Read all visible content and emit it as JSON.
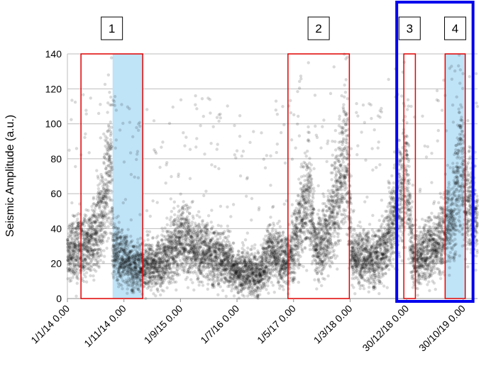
{
  "chart_data": {
    "type": "scatter",
    "title": "",
    "xlabel": "",
    "ylabel": "Seismic Amplitude (a.u.)",
    "xlim": [
      "2014-01-01",
      "2020-01-15"
    ],
    "ylim": [
      0,
      140
    ],
    "y_ticks": [
      0,
      20,
      40,
      60,
      80,
      100,
      120,
      140
    ],
    "x_tick_labels": [
      {
        "date": "2014-01-01",
        "label": "1/1/14 0.00"
      },
      {
        "date": "2014-11-01",
        "label": "1/11/14 0.00"
      },
      {
        "date": "2015-09-01",
        "label": "1/9/15 0.00"
      },
      {
        "date": "2016-07-01",
        "label": "1/7/16 0.00"
      },
      {
        "date": "2017-05-01",
        "label": "1/5/17 0.00"
      },
      {
        "date": "2018-03-01",
        "label": "1/3/18 0.00"
      },
      {
        "date": "2018-12-30",
        "label": "30/12/18 0.00"
      },
      {
        "date": "2019-10-30",
        "label": "30/10/19 0.00"
      }
    ],
    "grid": true,
    "marker_color": "#000000",
    "marker_opacity": 0.15,
    "baseline_profile": [
      {
        "date": "2014-01-01",
        "y": 25
      },
      {
        "date": "2014-03-01",
        "y": 30
      },
      {
        "date": "2014-04-15",
        "y": 28
      },
      {
        "date": "2014-06-01",
        "y": 38
      },
      {
        "date": "2014-07-20",
        "y": 55
      },
      {
        "date": "2014-08-25",
        "y": 85
      },
      {
        "date": "2014-09-01",
        "y": 30
      },
      {
        "date": "2014-11-01",
        "y": 22
      },
      {
        "date": "2015-01-01",
        "y": 18
      },
      {
        "date": "2015-06-01",
        "y": 20
      },
      {
        "date": "2015-09-01",
        "y": 35
      },
      {
        "date": "2015-12-01",
        "y": 28
      },
      {
        "date": "2016-05-01",
        "y": 22
      },
      {
        "date": "2016-07-01",
        "y": 15
      },
      {
        "date": "2016-11-01",
        "y": 14
      },
      {
        "date": "2017-01-01",
        "y": 28
      },
      {
        "date": "2017-04-01",
        "y": 20
      },
      {
        "date": "2017-07-20",
        "y": 60
      },
      {
        "date": "2017-09-01",
        "y": 28
      },
      {
        "date": "2017-11-01",
        "y": 35
      },
      {
        "date": "2018-02-10",
        "y": 85
      },
      {
        "date": "2018-03-10",
        "y": 25
      },
      {
        "date": "2018-07-01",
        "y": 22
      },
      {
        "date": "2018-09-01",
        "y": 28
      },
      {
        "date": "2018-12-30",
        "y": 70
      },
      {
        "date": "2019-02-01",
        "y": 22
      },
      {
        "date": "2019-06-01",
        "y": 30
      },
      {
        "date": "2019-09-01",
        "y": 45
      },
      {
        "date": "2019-10-15",
        "y": 80
      },
      {
        "date": "2019-11-15",
        "y": 55
      },
      {
        "date": "2020-01-15",
        "y": 45
      }
    ],
    "annotations": [
      {
        "label": "1",
        "x_start": "2014-03-15",
        "x_end": "2015-02-10",
        "shade_start": "2014-09-01",
        "shade_end": "2015-02-10",
        "y_top": 140,
        "y_bottom": 0,
        "outline_color": "#e00000",
        "shade_color": "#bfe3f7"
      },
      {
        "label": "2",
        "x_start": "2017-04-01",
        "x_end": "2018-02-25",
        "shade_start": null,
        "shade_end": null,
        "y_top": 140,
        "y_bottom": 0,
        "outline_color": "#e00000",
        "shade_color": null
      },
      {
        "label": "3",
        "x_start": "2018-12-15",
        "x_end": "2019-02-15",
        "shade_start": null,
        "shade_end": null,
        "y_top": 140,
        "y_bottom": 0,
        "outline_color": "#e00000",
        "shade_color": null
      },
      {
        "label": "4",
        "x_start": "2019-07-25",
        "x_end": "2019-11-10",
        "shade_start": "2019-07-25",
        "shade_end": "2019-11-10",
        "y_top": 140,
        "y_bottom": 0,
        "outline_color": "#e00000",
        "shade_color": "#bfe3f7"
      }
    ],
    "highlight_group": {
      "labels": [
        "3",
        "4"
      ],
      "color": "#0000ee"
    }
  }
}
